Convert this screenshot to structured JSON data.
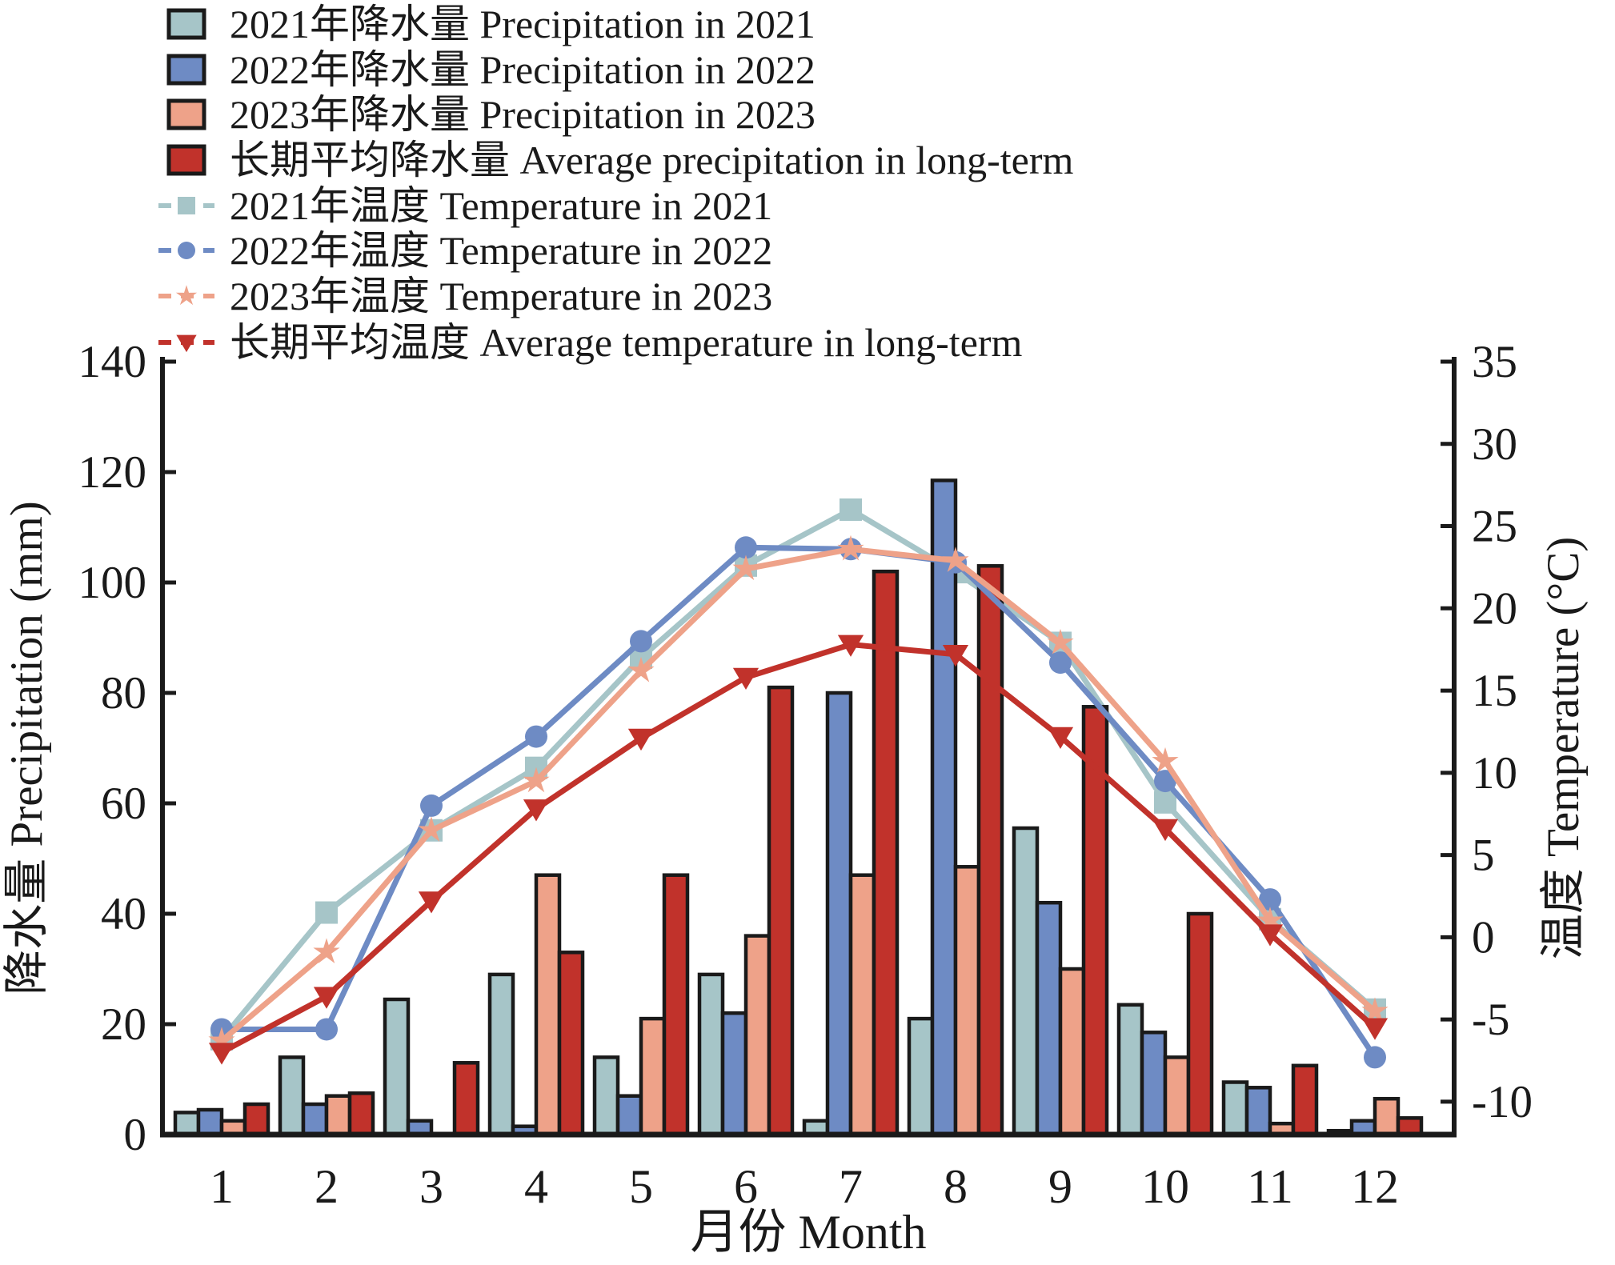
{
  "chart_data": {
    "type": "combo-bar-line",
    "title": "",
    "xlabel": "月份 Month",
    "ylabel_left": "降水量 Precipitation (mm)",
    "ylabel_right": "温度 Temperature (°C)",
    "categories": [
      1,
      2,
      3,
      4,
      5,
      6,
      7,
      8,
      9,
      10,
      11,
      12
    ],
    "x_tick_labels": [
      "1",
      "2",
      "3",
      "4",
      "5",
      "6",
      "7",
      "8",
      "9",
      "10",
      "11",
      "12"
    ],
    "ylim_left": [
      0,
      140
    ],
    "yticks_left": [
      0,
      20,
      40,
      60,
      80,
      100,
      120,
      140
    ],
    "ylim_right": [
      -12,
      35
    ],
    "yticks_right": [
      -10,
      -5,
      0,
      5,
      10,
      15,
      20,
      25,
      30,
      35
    ],
    "grid": false,
    "legend_position": "top-left",
    "axis_color": "#1a1a1a",
    "bar_series": [
      {
        "name": "2021年降水量 Precipitation in 2021",
        "color": "#a6c5c8",
        "values": [
          4,
          14,
          24.5,
          29,
          14,
          29,
          2.5,
          21,
          55.5,
          23.5,
          9.5,
          0.7
        ]
      },
      {
        "name": "2022年降水量 Precipitation in 2022",
        "color": "#6e8bc4",
        "values": [
          4.5,
          5.5,
          2.5,
          1.5,
          7,
          22,
          80,
          118.5,
          42,
          18.5,
          8.5,
          2.5
        ]
      },
      {
        "name": "2023年降水量 Precipitation in 2023",
        "color": "#eea289",
        "values": [
          2.5,
          7,
          0,
          47,
          21,
          36,
          47,
          48.5,
          30,
          14,
          2,
          6.5
        ]
      },
      {
        "name": "长期平均降水量 Average precipitation in long-term",
        "color": "#c1322b",
        "values": [
          5.5,
          7.5,
          13,
          33,
          47,
          81,
          102,
          103,
          77.5,
          40,
          12.5,
          3
        ]
      }
    ],
    "line_series": [
      {
        "name": "2021年温度 Temperature in 2021",
        "color": "#a6c5c8",
        "marker": "square",
        "values": [
          -6.2,
          1.5,
          6.5,
          10.3,
          17.0,
          22.6,
          26.0,
          22.2,
          17.9,
          8.2,
          1.1,
          -4.4
        ]
      },
      {
        "name": "2022年温度 Temperature in 2022",
        "color": "#6e8bc4",
        "marker": "circle",
        "values": [
          -5.6,
          -5.6,
          8.0,
          12.2,
          18.0,
          23.7,
          23.6,
          22.8,
          16.7,
          9.5,
          2.3,
          -7.3
        ]
      },
      {
        "name": "2023年温度 Temperature in 2023",
        "color": "#eea289",
        "marker": "star",
        "values": [
          -6.3,
          -0.9,
          6.5,
          9.5,
          16.2,
          22.4,
          23.6,
          22.9,
          17.9,
          10.7,
          1.0,
          -4.5
        ]
      },
      {
        "name": "长期平均温度 Average temperature in long-term",
        "color": "#c1322b",
        "marker": "triangle-down",
        "values": [
          -7.0,
          -3.6,
          2.2,
          7.8,
          12.1,
          15.8,
          17.8,
          17.2,
          12.2,
          6.6,
          0.2,
          -5.5
        ]
      }
    ]
  }
}
